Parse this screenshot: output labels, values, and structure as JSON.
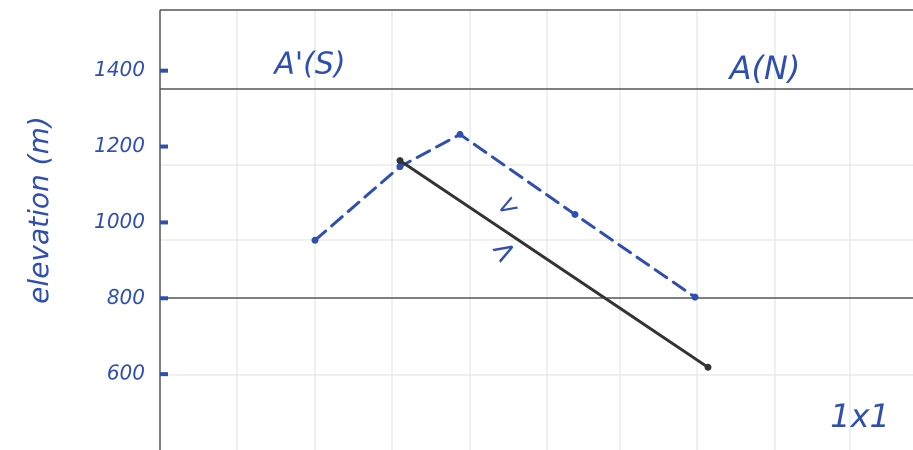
{
  "chart_data": {
    "type": "line",
    "y_label": "elevation (m)",
    "ylim": [
      400,
      1560
    ],
    "yticks": [
      600,
      800,
      1000,
      1200,
      1400
    ],
    "xlim": [
      160,
      913
    ],
    "grid": true,
    "series": [
      {
        "color": "#2f4fb0",
        "dashed": true,
        "x": [
          315,
          400,
          460,
          575,
          695
        ],
        "values": [
          953,
          1147,
          1232,
          1021,
          803
        ]
      },
      {
        "color": "#333333",
        "dashed": false,
        "x": [
          400,
          708
        ],
        "values": [
          1163,
          618
        ]
      }
    ],
    "annotations": [
      "A'(S)",
      "A(N)",
      "<",
      ">",
      "1x1"
    ]
  }
}
